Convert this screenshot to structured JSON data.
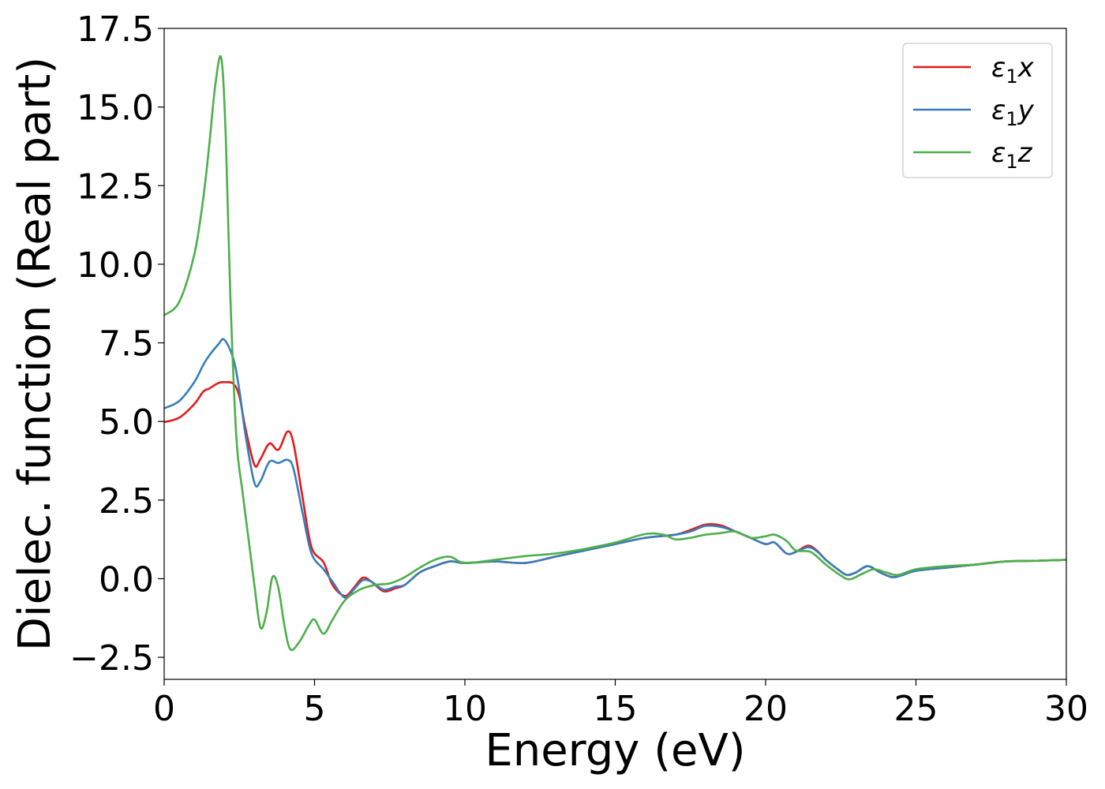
{
  "chart_data": {
    "type": "line",
    "title": "",
    "xlabel": "Energy (eV)",
    "ylabel": "Dielec. function (Real part)",
    "xlim": [
      0,
      30
    ],
    "ylim": [
      -3.2,
      17.5
    ],
    "xticks": [
      0,
      5,
      10,
      15,
      20,
      25,
      30
    ],
    "xtick_labels": [
      "0",
      "5",
      "10",
      "15",
      "20",
      "25",
      "30"
    ],
    "yticks": [
      -2.5,
      0.0,
      2.5,
      5.0,
      7.5,
      10.0,
      12.5,
      15.0,
      17.5
    ],
    "ytick_labels": [
      "−2.5",
      "0.0",
      "2.5",
      "5.0",
      "7.5",
      "10.0",
      "12.5",
      "15.0",
      "17.5"
    ],
    "grid": false,
    "legend_position": "top-right",
    "series": [
      {
        "name": "ε₁x",
        "legend_label": {
          "base": "ε",
          "sub": "1",
          "var": "x"
        },
        "color": "#e41a1c",
        "x": [
          0,
          0.5,
          1.0,
          1.3,
          1.5,
          1.8,
          2.0,
          2.3,
          2.5,
          2.7,
          3.0,
          3.2,
          3.5,
          3.8,
          4.1,
          4.3,
          4.6,
          4.9,
          5.3,
          5.6,
          6.0,
          6.3,
          6.6,
          6.9,
          7.3,
          7.7,
          8.0,
          8.5,
          9.0,
          9.5,
          10.0,
          11.0,
          12.0,
          13.0,
          14.0,
          15.0,
          16.0,
          17.0,
          17.5,
          18.0,
          18.5,
          19.0,
          19.5,
          20.0,
          20.3,
          20.7,
          21.0,
          21.4,
          21.7,
          22.0,
          22.4,
          22.7,
          23.0,
          23.4,
          23.8,
          24.2,
          24.5,
          25.0,
          26.0,
          27.0,
          28.0,
          29.0,
          30.0
        ],
        "values": [
          4.98,
          5.12,
          5.55,
          5.95,
          6.05,
          6.22,
          6.25,
          6.2,
          5.8,
          4.8,
          3.62,
          3.8,
          4.3,
          4.1,
          4.68,
          4.3,
          2.6,
          1.0,
          0.52,
          -0.2,
          -0.55,
          -0.3,
          0.03,
          -0.1,
          -0.4,
          -0.3,
          -0.2,
          0.2,
          0.4,
          0.55,
          0.5,
          0.55,
          0.5,
          0.7,
          0.9,
          1.1,
          1.3,
          1.4,
          1.55,
          1.72,
          1.7,
          1.5,
          1.3,
          1.1,
          1.15,
          0.8,
          0.85,
          1.05,
          0.9,
          0.6,
          0.3,
          0.12,
          0.2,
          0.4,
          0.2,
          0.05,
          0.1,
          0.25,
          0.35,
          0.45,
          0.55,
          0.57,
          0.6
        ]
      },
      {
        "name": "ε₁y",
        "legend_label": {
          "base": "ε",
          "sub": "1",
          "var": "y"
        },
        "color": "#377eb8",
        "x": [
          0,
          0.5,
          1.0,
          1.3,
          1.5,
          1.8,
          2.0,
          2.3,
          2.5,
          2.7,
          3.0,
          3.2,
          3.5,
          3.8,
          4.1,
          4.3,
          4.6,
          4.9,
          5.3,
          5.6,
          6.0,
          6.3,
          6.6,
          6.9,
          7.3,
          7.7,
          8.0,
          8.5,
          9.0,
          9.5,
          10.0,
          11.0,
          12.0,
          13.0,
          14.0,
          15.0,
          16.0,
          17.0,
          17.5,
          18.0,
          18.5,
          19.0,
          19.5,
          20.0,
          20.3,
          20.7,
          21.0,
          21.4,
          21.7,
          22.0,
          22.4,
          22.7,
          23.0,
          23.4,
          23.8,
          24.2,
          24.5,
          25.0,
          26.0,
          27.0,
          28.0,
          29.0,
          30.0
        ],
        "values": [
          5.42,
          5.65,
          6.25,
          6.8,
          7.1,
          7.45,
          7.6,
          7.0,
          6.0,
          4.6,
          3.05,
          3.1,
          3.72,
          3.68,
          3.78,
          3.5,
          2.1,
          0.8,
          0.3,
          -0.1,
          -0.6,
          -0.35,
          -0.05,
          -0.1,
          -0.35,
          -0.25,
          -0.2,
          0.2,
          0.4,
          0.55,
          0.5,
          0.55,
          0.5,
          0.7,
          0.9,
          1.1,
          1.3,
          1.4,
          1.5,
          1.68,
          1.65,
          1.5,
          1.3,
          1.1,
          1.15,
          0.8,
          0.85,
          1.0,
          0.88,
          0.6,
          0.3,
          0.12,
          0.2,
          0.4,
          0.2,
          0.05,
          0.1,
          0.25,
          0.35,
          0.45,
          0.55,
          0.57,
          0.6
        ]
      },
      {
        "name": "ε₁z",
        "legend_label": {
          "base": "ε",
          "sub": "1",
          "var": "z"
        },
        "color": "#4daf4a",
        "x": [
          0,
          0.5,
          1.0,
          1.3,
          1.5,
          1.7,
          1.9,
          2.05,
          2.2,
          2.4,
          2.6,
          2.8,
          3.0,
          3.2,
          3.4,
          3.6,
          3.8,
          4.0,
          4.2,
          4.5,
          4.8,
          5.0,
          5.3,
          5.6,
          6.0,
          6.5,
          7.0,
          7.5,
          8.0,
          8.5,
          9.0,
          9.5,
          10.0,
          11.0,
          12.0,
          13.0,
          14.0,
          15.0,
          16.0,
          16.6,
          17.0,
          17.5,
          18.0,
          18.5,
          19.0,
          19.5,
          20.0,
          20.3,
          20.7,
          21.0,
          21.5,
          22.0,
          22.5,
          22.8,
          23.2,
          23.6,
          24.0,
          24.4,
          25.0,
          26.0,
          27.0,
          28.0,
          29.0,
          30.0
        ],
        "values": [
          8.38,
          8.8,
          10.3,
          12.1,
          13.8,
          15.7,
          16.55,
          14.0,
          9.0,
          4.5,
          2.8,
          1.3,
          -0.2,
          -1.55,
          -1.1,
          0.05,
          -0.3,
          -1.5,
          -2.25,
          -2.0,
          -1.5,
          -1.3,
          -1.75,
          -1.3,
          -0.7,
          -0.35,
          -0.2,
          -0.15,
          0.05,
          0.35,
          0.6,
          0.7,
          0.5,
          0.6,
          0.72,
          0.8,
          0.95,
          1.15,
          1.42,
          1.4,
          1.25,
          1.3,
          1.4,
          1.45,
          1.5,
          1.3,
          1.35,
          1.4,
          1.2,
          0.9,
          0.85,
          0.45,
          0.1,
          -0.02,
          0.15,
          0.3,
          0.2,
          0.12,
          0.3,
          0.4,
          0.45,
          0.55,
          0.57,
          0.6
        ]
      }
    ]
  }
}
